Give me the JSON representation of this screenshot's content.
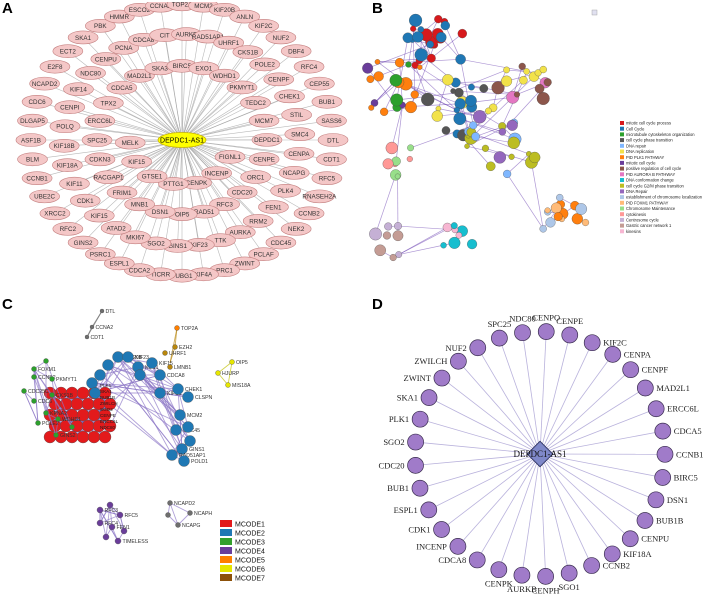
{
  "panel_labels": {
    "a": "A",
    "b": "B",
    "c": "C",
    "d": "D"
  },
  "panel_a": {
    "hub": "DEPDC1-AS1",
    "genes": [
      "DTL",
      "CDT1",
      "RFC5",
      "RNASEH2A",
      "CCNB2",
      "NEK2",
      "CDC45",
      "PCLAF",
      "ZWINT",
      "PRC1",
      "KIF4A",
      "TUBG1",
      "TICRR",
      "CDCA2",
      "ESPL1",
      "PSRC1",
      "GINS2",
      "RFC2",
      "XRCC2",
      "UBE2C",
      "CCNB1",
      "BLM",
      "ASF1B",
      "DLGAP5",
      "CDC6",
      "NCAPD2",
      "E2F8",
      "ECT2",
      "SKA1",
      "PBK",
      "HMMR",
      "ESCO2",
      "CCNA2",
      "TOP2A",
      "MCM2",
      "KIF20B",
      "ANLN",
      "KIF2C",
      "NUF2",
      "DBF4",
      "RFC4",
      "CEP55",
      "BUB1",
      "SASS6",
      "CENPA",
      "NCAPG",
      "PLK4",
      "FEN1",
      "RRM2",
      "AURKA",
      "TTK",
      "KIF23",
      "GINS1",
      "SGO2",
      "MKI67",
      "ATAD2",
      "KIF15",
      "CDK1",
      "KIF11",
      "KIF18A",
      "KIF18B",
      "POLQ",
      "CENPI",
      "KIF14",
      "NDC80",
      "CENPU",
      "PCNA",
      "CDCA8",
      "CIT",
      "AURKB",
      "RAD51AP1",
      "UHRF1",
      "CKS1B",
      "POLE2",
      "CENPF",
      "CHEK1",
      "STIL",
      "SMC4",
      "CENPE",
      "ORC1",
      "CDC20",
      "RFC3",
      "RAD51",
      "OIP5",
      "DSN1",
      "MNB1",
      "FRIM1",
      "RACGAP1",
      "CDKN3",
      "SPC25",
      "ERCC6L",
      "TPX2",
      "CDCA5",
      "MAD2L1",
      "SKA3",
      "BIRC5",
      "EXO1",
      "WDHD1",
      "PKMYT1",
      "TEDC2",
      "MCM7",
      "DEPDC1",
      "FIGNL1",
      "INCENP",
      "CENPK",
      "PTTG1",
      "GTSE1",
      "KIF15",
      "MELK"
    ]
  },
  "panel_b": {
    "legend": [
      "mitotic cell cycle process",
      "Cell Cycle",
      "microtubule cytoskeleton organization",
      "cell cycle phase transition",
      "DNA repair",
      "DNA replication",
      "PID PLK1 PATHWAY",
      "mitotic cell cycle",
      "positive regulation of cell cycle",
      "PID AURORA B PATHWAY",
      "DNA conformation change",
      "cell cycle G2/M phase transition",
      "DNA Repair",
      "establishment of chromosome localization",
      "PID FOXM1 PATHWAY",
      "Chromosome Maintenance",
      "cytokinesis",
      "Centrosome cycle",
      "Gastric cancer network 1",
      "kinesins"
    ],
    "legend_colors": [
      "#d7191c",
      "#1f77b4",
      "#2ca02c",
      "#555555",
      "#7fb7ff",
      "#f2e24a",
      "#ff7f0e",
      "#6a3d9a",
      "#8c564b",
      "#e377c2",
      "#17becf",
      "#bcbd22",
      "#9467bd",
      "#aec7e8",
      "#ffbb78",
      "#98df8a",
      "#ff9896",
      "#c5b0d5",
      "#c49c94",
      "#f7b6d2"
    ]
  },
  "panel_c": {
    "legend": [
      "MCODE1",
      "MCODE2",
      "MCODE3",
      "MCODE4",
      "MCODE5",
      "MCODE6",
      "MCODE7"
    ],
    "legend_colors": [
      "#e31a1c",
      "#1f78b4",
      "#33a02c",
      "#6a3d9a",
      "#ff7f00",
      "#e6e600",
      "#8c510a"
    ],
    "labels": [
      "DTL",
      "CCNA2",
      "CDT1",
      "TOP2A",
      "EZH2",
      "UHRF1",
      "LMNB1",
      "OIP5",
      "HJURP",
      "MIS18A",
      "KIF20B",
      "KIF23",
      "KIF11",
      "KIF15",
      "CDCA8",
      "KIFC1",
      "CHEK1",
      "CLSPN",
      "MCM2",
      "CDC45",
      "GINS1",
      "RAD51AP1",
      "POLD1",
      "CCNB2",
      "FOXM1",
      "PKMYT1",
      "CKS1B",
      "KPNA2",
      "POLE2",
      "WDHD1",
      "GINS2",
      "CDC25C",
      "CDC6",
      "NCAPD2",
      "NCAPH",
      "NCAPG",
      "TIMELESS",
      "FEN1",
      "RFC3",
      "RFC5",
      "RFC4",
      "PLK1",
      "SKA1",
      "BUB1B",
      "ZWILCH",
      "SGO2",
      "CENPE",
      "ERCC6L",
      "NDC80"
    ]
  },
  "panel_d": {
    "hub": "DEPDC1-AS1",
    "genes": [
      "CENPO",
      "CENPE",
      "KIF2C",
      "CENPA",
      "CENPF",
      "MAD2L1",
      "ERCC6L",
      "CDCA5",
      "CCNB1",
      "BIRC5",
      "DSN1",
      "BUB1B",
      "CENPU",
      "KIF18A",
      "CCNB2",
      "SGO1",
      "CENPH",
      "AURKB",
      "CENPK",
      "CDCA8",
      "INCENP",
      "CDK1",
      "ESPL1",
      "BUB1",
      "CDC20",
      "SGO2",
      "PLK1",
      "SKA1",
      "ZWINT",
      "ZWILCH",
      "NUF2",
      "SPC25",
      "NDC80"
    ]
  }
}
